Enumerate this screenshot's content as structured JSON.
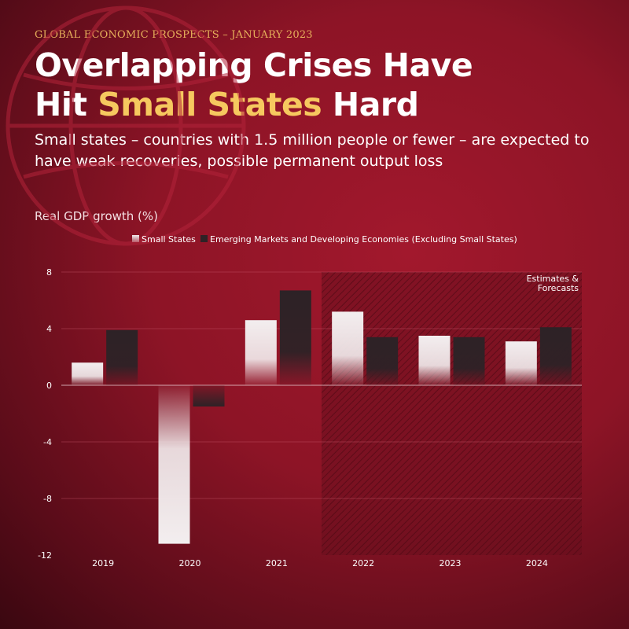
{
  "header": {
    "kicker": "GLOBAL ECONOMIC PROSPECTS – JANUARY 2023",
    "title_line1": "Overlapping Crises Have",
    "title_line2_prefix": "Hit ",
    "title_line2_highlight": "Small States",
    "title_line2_suffix": " Hard",
    "subtitle": "Small states – countries with 1.5 million people or fewer – are expected to have weak recoveries, possible permanent output loss"
  },
  "chart_data": {
    "type": "bar",
    "ylabel": "Real GDP growth (%)",
    "categories": [
      "2019",
      "2020",
      "2021",
      "2022",
      "2023",
      "2024"
    ],
    "series": [
      {
        "name": "Small States",
        "values": [
          1.6,
          -11.2,
          4.6,
          5.2,
          3.5,
          3.1
        ],
        "color": "#f2eced"
      },
      {
        "name": "Emerging Markets and Developing Economies (Excluding Small States)",
        "values": [
          3.9,
          -1.5,
          6.7,
          3.4,
          3.4,
          4.1
        ],
        "color": "#2d2226"
      }
    ],
    "ylim": [
      -12,
      8
    ],
    "yticks": [
      8,
      4,
      0,
      -4,
      -8,
      -12
    ],
    "legend_position": "top-center",
    "shaded_from_category": "2022",
    "shaded_label_line1": "Estimates &",
    "shaded_label_line2": "Forecasts",
    "colors": {
      "background": "#8d1426",
      "accent": "#f6c85f"
    }
  }
}
